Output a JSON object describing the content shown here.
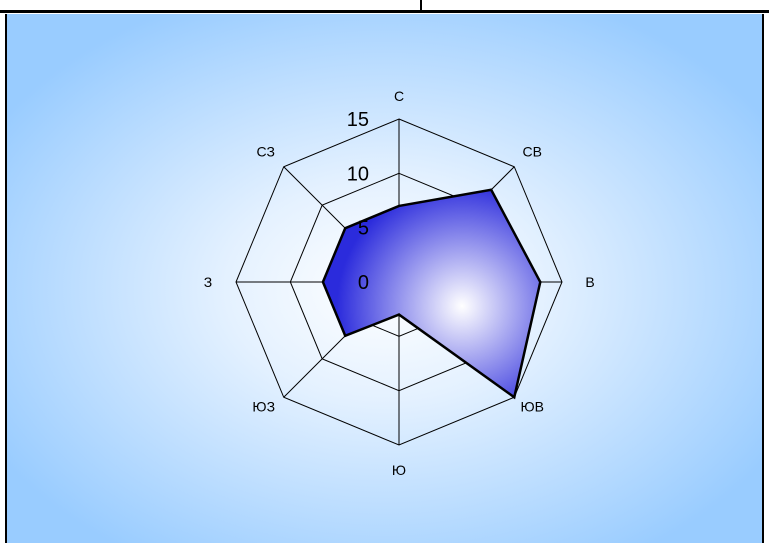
{
  "chart_data": {
    "type": "radar",
    "axes": [
      "С",
      "СВ",
      "В",
      "ЮВ",
      "Ю",
      "ЮЗ",
      "З",
      "СЗ"
    ],
    "values": [
      7,
      12,
      13,
      15,
      3,
      7,
      7,
      7
    ],
    "rlim": [
      0,
      15
    ],
    "ticks": [
      "0",
      "5",
      "10",
      "15"
    ],
    "grid": true,
    "colors": {
      "fill_inner": "#ffffff",
      "fill_outer": "#2b2bdc",
      "stroke": "#000000",
      "background_outer": "#99ccff",
      "background_inner": "#ffffff"
    }
  }
}
